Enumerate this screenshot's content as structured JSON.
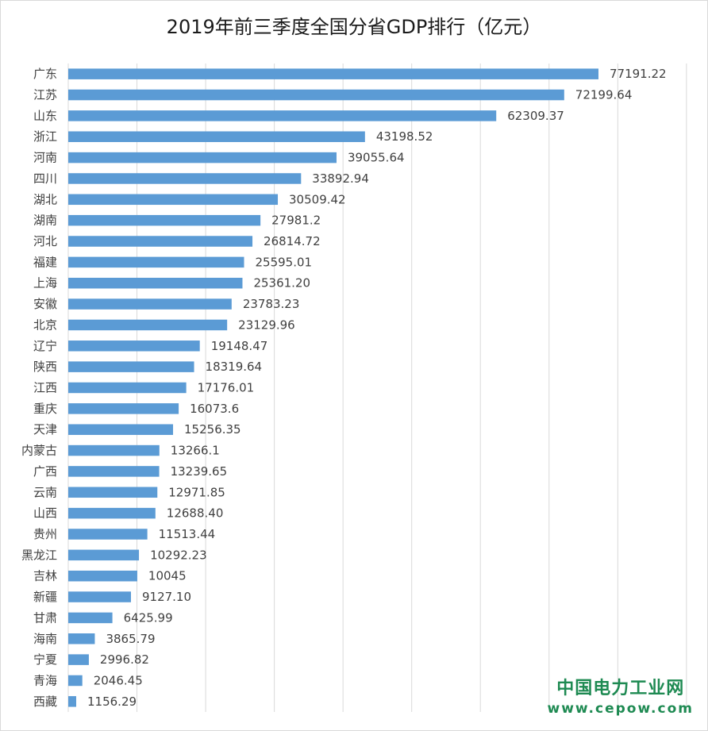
{
  "chart_data": {
    "type": "bar",
    "orientation": "horizontal",
    "title": "2019年前三季度全国分省GDP排行（亿元）",
    "categories": [
      "广东",
      "江苏",
      "山东",
      "浙江",
      "河南",
      "四川",
      "湖北",
      "湖南",
      "河北",
      "福建",
      "上海",
      "安徽",
      "北京",
      "辽宁",
      "陕西",
      "江西",
      "重庆",
      "天津",
      "内蒙古",
      "广西",
      "云南",
      "山西",
      "贵州",
      "黑龙江",
      "吉林",
      "新疆",
      "甘肃",
      "海南",
      "宁夏",
      "青海",
      "西藏"
    ],
    "values": [
      77191.22,
      72199.64,
      62309.37,
      43198.52,
      39055.64,
      33892.94,
      30509.42,
      27981.2,
      26814.72,
      25595.01,
      25361.2,
      23783.23,
      23129.96,
      19148.47,
      18319.64,
      17176.01,
      16073.6,
      15256.35,
      13266.1,
      13239.65,
      12971.85,
      12688.4,
      11513.44,
      10292.23,
      10045,
      9127.1,
      6425.99,
      3865.79,
      2996.82,
      2046.45,
      1156.29
    ],
    "value_labels": [
      "77191.22",
      "72199.64",
      "62309.37",
      "43198.52",
      "39055.64",
      "33892.94",
      "30509.42",
      "27981.2",
      "26814.72",
      "25595.01",
      "25361.20",
      "23783.23",
      "23129.96",
      "19148.47",
      "18319.64",
      "17176.01",
      "16073.6",
      "15256.35",
      "13266.1",
      "13239.65",
      "12971.85",
      "12688.40",
      "11513.44",
      "10292.23",
      "10045",
      "9127.10",
      "6425.99",
      "3865.79",
      "2996.82",
      "2046.45",
      "1156.29"
    ],
    "xlim": [
      0,
      90000
    ],
    "grid_step": 10000,
    "grid": true,
    "bar_color": "#5b9bd5",
    "grid_color": "#d9d9d9"
  },
  "watermark": {
    "line1": "中国电力工业网",
    "line2": "www.cepow.com"
  }
}
